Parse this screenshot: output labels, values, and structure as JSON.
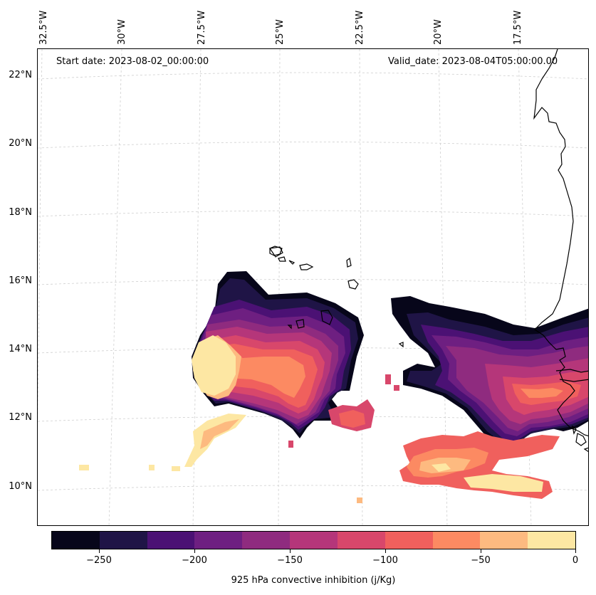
{
  "header": {
    "start_date": "Start date: 2023-08-02_00:00:00",
    "valid_date": "Valid_date: 2023-08-04T05:00:00.00"
  },
  "lon_labels": [
    "32.5°W",
    "30°W",
    "27.5°W",
    "25°W",
    "22.5°W",
    "20°W",
    "17.5°W"
  ],
  "lat_labels": [
    "22°N",
    "20°N",
    "18°N",
    "16°N",
    "14°N",
    "12°N",
    "10°N"
  ],
  "colorbar": {
    "title": "925 hPa convective inhibition (j/Kg)",
    "tick_labels": [
      "−250",
      "−200",
      "−150",
      "−100",
      "−50",
      "0"
    ],
    "levels": [
      -275,
      -250,
      -225,
      -200,
      -175,
      -150,
      -125,
      -100,
      -75,
      -50,
      -25,
      0
    ],
    "colors": [
      "#07061a",
      "#1f1446",
      "#4b1174",
      "#6e1f81",
      "#8f2b7f",
      "#b5367a",
      "#d8476b",
      "#f0605d",
      "#fc8a62",
      "#fdba80",
      "#fde7a3"
    ]
  },
  "map": {
    "variable": "925 hPa convective inhibition",
    "units": "j/Kg",
    "extent": {
      "lon_min": -33,
      "lon_max": -16.5,
      "lat_min": 9,
      "lat_max": 22.7
    },
    "gridlines": true,
    "coastline_color": "#000000"
  }
}
